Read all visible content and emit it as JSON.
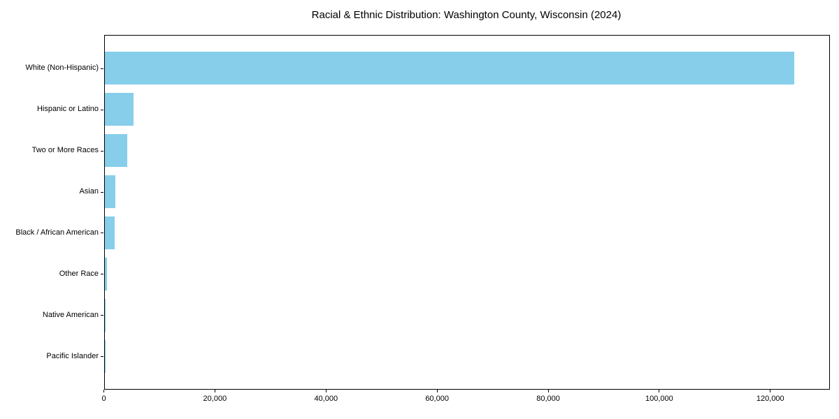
{
  "chart_data": {
    "type": "bar",
    "orientation": "horizontal",
    "title": "Racial & Ethnic Distribution: Washington County, Wisconsin (2024)",
    "categories": [
      "White (Non-Hispanic)",
      "Hispanic or Latino",
      "Two or More Races",
      "Asian",
      "Black / African American",
      "Other Race",
      "Native American",
      "Pacific Islander"
    ],
    "values": [
      124200,
      5200,
      4050,
      1950,
      1790,
      480,
      130,
      40
    ],
    "xlabel": "",
    "ylabel": "",
    "xlim": [
      0,
      130410
    ],
    "xticks": [
      0,
      20000,
      40000,
      60000,
      80000,
      100000,
      120000
    ],
    "xtick_labels": [
      "0",
      "20,000",
      "40,000",
      "60,000",
      "80,000",
      "100,000",
      "120,000"
    ],
    "bar_color": "#87CEEB",
    "axis_color": "#000000",
    "text_color": "#000000",
    "background_color": "#ffffff",
    "grid": false,
    "legend": false
  }
}
